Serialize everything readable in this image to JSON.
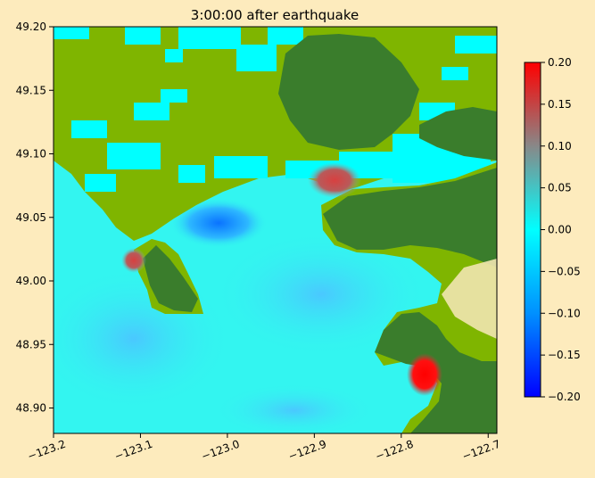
{
  "chart_data": {
    "type": "heatmap",
    "title": "3:00:00 after earthquake",
    "xlabel": "",
    "ylabel": "",
    "xlim": [
      -123.2,
      -122.69
    ],
    "ylim": [
      48.88,
      49.2
    ],
    "x_ticks": [
      -123.2,
      -123.1,
      -123.0,
      -122.9,
      -122.8,
      -122.7
    ],
    "x_tick_labels": [
      "−123.2",
      "−123.1",
      "−123.0",
      "−122.9",
      "−122.8",
      "−122.7"
    ],
    "y_ticks": [
      48.9,
      48.95,
      49.0,
      49.05,
      49.1,
      49.15,
      49.2
    ],
    "y_tick_labels": [
      "48.90",
      "48.95",
      "49.00",
      "49.05",
      "49.10",
      "49.15",
      "49.20"
    ],
    "colorbar": {
      "range": [
        -0.2,
        0.2
      ],
      "ticks": [
        0.2,
        0.15,
        0.1,
        0.05,
        0.0,
        -0.05,
        -0.1,
        -0.15,
        -0.2
      ],
      "tick_labels": [
        "0.20",
        "0.15",
        "0.10",
        "0.05",
        "0.00",
        "−0.05",
        "−0.10",
        "−0.15",
        "−0.20"
      ],
      "colors": {
        "low": "#0000ff",
        "mid_low": "#0090ff",
        "zero": "#00ffff",
        "mid_high": "#888888",
        "high": "#ff0000"
      }
    },
    "grid": false,
    "colors": {
      "background": "#fdebbd",
      "water_base": "#33f5f0",
      "land_low": "#7fb500",
      "land_high": "#3a7d2c",
      "dry_land_cells": "#00ffff"
    }
  }
}
